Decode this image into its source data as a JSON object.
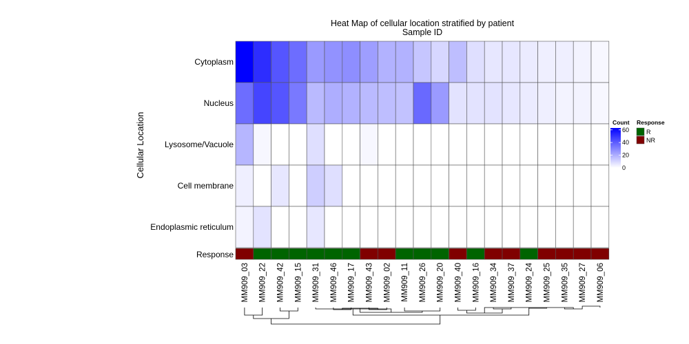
{
  "chart_data": {
    "type": "heatmap",
    "title": "Heat Map of cellular location stratified by patient",
    "subtitle": "Sample ID",
    "ylabel": "Cellular Location",
    "xlabel": "",
    "rows": [
      "Cytoplasm",
      "Nucleus",
      "Lysosome/Vacuole",
      "Cell membrane",
      "Endoplasmic reticulum"
    ],
    "columns": [
      "MM909_03",
      "MM909_22",
      "MM909_42",
      "MM909_15",
      "MM909_31",
      "MM909_46",
      "MM909_17",
      "MM909_43",
      "MM909_02",
      "MM909_11",
      "MM909_26",
      "MM909_20",
      "MM909_40",
      "MM909_16",
      "MM909_34",
      "MM909_37",
      "MM909_24",
      "MM909_25",
      "MM909_35",
      "MM909_27",
      "MM909_06"
    ],
    "values": [
      [
        63,
        52,
        42,
        36,
        25,
        27,
        28,
        24,
        19,
        19,
        14,
        10,
        16,
        8,
        6,
        6,
        5,
        4,
        4,
        3,
        2
      ],
      [
        36,
        46,
        42,
        33,
        17,
        20,
        19,
        17,
        16,
        15,
        37,
        25,
        7,
        7,
        7,
        6,
        5,
        4,
        3,
        3,
        2
      ],
      [
        18,
        2,
        0,
        0,
        8,
        0,
        0,
        2,
        0,
        0,
        0,
        0,
        0,
        0,
        0,
        0,
        0,
        0,
        0,
        0,
        0
      ],
      [
        4,
        0,
        6,
        0,
        12,
        8,
        0,
        0,
        0,
        0,
        0,
        0,
        0,
        0,
        0,
        0,
        0,
        0,
        0,
        0,
        0
      ],
      [
        3,
        7,
        0,
        0,
        6,
        0,
        0,
        0,
        0,
        0,
        0,
        0,
        0,
        0,
        0,
        0,
        0,
        0,
        0,
        0,
        0
      ]
    ],
    "annotation_row_label": "Response",
    "response": [
      "NR",
      "R",
      "R",
      "R",
      "R",
      "R",
      "R",
      "NR",
      "NR",
      "R",
      "R",
      "R",
      "NR",
      "R",
      "NR",
      "NR",
      "R",
      "NR",
      "NR",
      "NR",
      "NR"
    ],
    "color_scale": {
      "min": 0,
      "max": 63,
      "low_color": "#ffffff",
      "high_color": "#0000ff",
      "ticks": [
        0,
        20,
        40,
        60
      ]
    },
    "legend": {
      "count_title": "Count",
      "response_title": "Response",
      "response_items": [
        {
          "label": "R",
          "color": "#006400"
        },
        {
          "label": "NR",
          "color": "#800000"
        }
      ],
      "placement": "right"
    },
    "column_dendrogram": true
  }
}
